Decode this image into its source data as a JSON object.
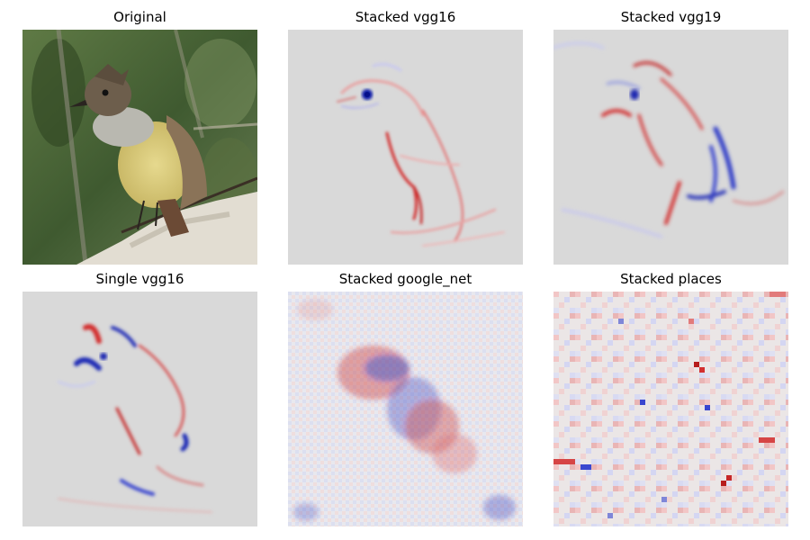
{
  "figure": {
    "panels": [
      {
        "title": "Original",
        "kind": "photo"
      },
      {
        "title": "Stacked vgg16",
        "kind": "heatmap-smooth"
      },
      {
        "title": "Stacked vgg19",
        "kind": "heatmap-smooth"
      },
      {
        "title": "Single vgg16",
        "kind": "heatmap-smooth"
      },
      {
        "title": "Stacked google_net",
        "kind": "heatmap-grid"
      },
      {
        "title": "Stacked places",
        "kind": "heatmap-blocky"
      }
    ],
    "colors": {
      "heatmap_background": "#d9d9d9",
      "positive": "#d62728",
      "negative": "#1f2bb5",
      "photo_foliage": "#4f6b3a",
      "bird_belly": "#d9c97a",
      "bird_back": "#8a7358",
      "rock": "#e2ddd2"
    }
  }
}
